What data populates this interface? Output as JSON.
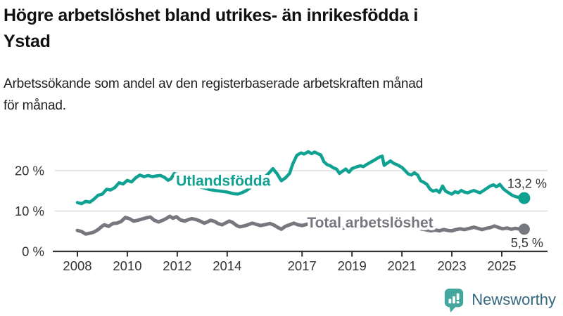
{
  "header": {
    "title_lines": [
      "Högre arbetslöshet bland utrikes- än inrikesfödda i",
      "Ystad"
    ],
    "subtitle_lines": [
      "Arbetssökande som andel av den registerbaserade arbetskraften månad",
      "för månad."
    ]
  },
  "chart_data": {
    "type": "line",
    "title": "Högre arbetslöshet bland utrikes- än inrikesfödda i Ystad",
    "subtitle": "Arbetssökande som andel av den registerbaserade arbetskraften månad för månad.",
    "xlabel": "",
    "ylabel": "",
    "grid": "horizontal",
    "legend_position": "inline-labels",
    "xlim": [
      2007.1,
      2026.8
    ],
    "ylim": [
      0,
      28
    ],
    "x_ticks": [
      {
        "year": 2008,
        "label": "2008"
      },
      {
        "year": 2010,
        "label": "2010"
      },
      {
        "year": 2012,
        "label": "2012"
      },
      {
        "year": 2014,
        "label": "2014"
      },
      {
        "year": 2017,
        "label": "2017"
      },
      {
        "year": 2019,
        "label": "2019"
      },
      {
        "year": 2021,
        "label": "2021"
      },
      {
        "year": 2023,
        "label": "2023"
      },
      {
        "year": 2025,
        "label": "2025"
      }
    ],
    "y_ticks": [
      {
        "value": 0,
        "label": "0 %"
      },
      {
        "value": 10,
        "label": "10 %"
      },
      {
        "value": 20,
        "label": "20 %"
      }
    ],
    "series": [
      {
        "id": "utlandsfodda",
        "name": "Utlandsfödda",
        "color": "#0FA191",
        "stroke_width": 4.5,
        "end_label": "13,2 %",
        "end_value": 13.2,
        "label_pos": {
          "year": 2011.95,
          "value": 16.3
        },
        "points": [
          [
            2008.0,
            12.1
          ],
          [
            2008.17,
            11.8
          ],
          [
            2008.33,
            12.4
          ],
          [
            2008.5,
            12.2
          ],
          [
            2008.67,
            13.0
          ],
          [
            2008.83,
            13.9
          ],
          [
            2009.0,
            14.2
          ],
          [
            2009.17,
            15.4
          ],
          [
            2009.33,
            15.2
          ],
          [
            2009.5,
            15.8
          ],
          [
            2009.67,
            17.0
          ],
          [
            2009.83,
            16.7
          ],
          [
            2010.0,
            17.6
          ],
          [
            2010.17,
            17.2
          ],
          [
            2010.33,
            18.2
          ],
          [
            2010.5,
            18.9
          ],
          [
            2010.67,
            18.5
          ],
          [
            2010.83,
            18.8
          ],
          [
            2011.0,
            18.5
          ],
          [
            2011.17,
            18.7
          ],
          [
            2011.33,
            18.8
          ],
          [
            2011.5,
            18.3
          ],
          [
            2011.63,
            17.6
          ],
          [
            2011.75,
            18.0
          ],
          [
            2011.88,
            19.3
          ],
          [
            2012.0,
            19.1
          ],
          [
            2012.25,
            18.3
          ],
          [
            2012.5,
            17.3
          ],
          [
            2012.75,
            16.4
          ],
          [
            2013.0,
            15.8
          ],
          [
            2013.25,
            15.4
          ],
          [
            2013.5,
            15.1
          ],
          [
            2013.75,
            14.9
          ],
          [
            2014.0,
            14.7
          ],
          [
            2014.25,
            14.3
          ],
          [
            2014.42,
            14.2
          ],
          [
            2014.58,
            14.5
          ],
          [
            2014.75,
            15.0
          ],
          [
            2015.0,
            16.1
          ],
          [
            2015.25,
            17.2
          ],
          [
            2015.5,
            18.4
          ],
          [
            2015.67,
            19.4
          ],
          [
            2015.83,
            20.5
          ],
          [
            2016.0,
            19.2
          ],
          [
            2016.17,
            17.5
          ],
          [
            2016.33,
            18.2
          ],
          [
            2016.5,
            19.3
          ],
          [
            2016.63,
            21.7
          ],
          [
            2016.79,
            23.8
          ],
          [
            2016.96,
            24.4
          ],
          [
            2017.08,
            24.1
          ],
          [
            2017.25,
            24.7
          ],
          [
            2017.38,
            24.2
          ],
          [
            2017.5,
            24.6
          ],
          [
            2017.63,
            24.2
          ],
          [
            2017.75,
            23.9
          ],
          [
            2017.88,
            22.2
          ],
          [
            2018.0,
            21.5
          ],
          [
            2018.13,
            21.2
          ],
          [
            2018.25,
            20.7
          ],
          [
            2018.38,
            20.4
          ],
          [
            2018.5,
            19.3
          ],
          [
            2018.63,
            19.9
          ],
          [
            2018.75,
            20.4
          ],
          [
            2018.88,
            19.6
          ],
          [
            2019.0,
            20.5
          ],
          [
            2019.17,
            20.9
          ],
          [
            2019.33,
            21.2
          ],
          [
            2019.46,
            21.0
          ],
          [
            2019.58,
            21.5
          ],
          [
            2019.75,
            22.1
          ],
          [
            2019.92,
            22.7
          ],
          [
            2020.08,
            23.3
          ],
          [
            2020.21,
            23.6
          ],
          [
            2020.29,
            21.3
          ],
          [
            2020.42,
            21.9
          ],
          [
            2020.54,
            22.4
          ],
          [
            2020.67,
            21.8
          ],
          [
            2020.83,
            21.4
          ],
          [
            2021.0,
            20.8
          ],
          [
            2021.13,
            20.0
          ],
          [
            2021.25,
            19.2
          ],
          [
            2021.38,
            18.9
          ],
          [
            2021.5,
            19.5
          ],
          [
            2021.63,
            18.9
          ],
          [
            2021.75,
            17.5
          ],
          [
            2021.88,
            17.1
          ],
          [
            2022.0,
            16.6
          ],
          [
            2022.13,
            15.4
          ],
          [
            2022.25,
            14.9
          ],
          [
            2022.38,
            15.2
          ],
          [
            2022.5,
            14.6
          ],
          [
            2022.63,
            16.2
          ],
          [
            2022.75,
            14.9
          ],
          [
            2022.88,
            14.5
          ],
          [
            2023.0,
            14.2
          ],
          [
            2023.13,
            14.8
          ],
          [
            2023.25,
            14.5
          ],
          [
            2023.38,
            15.1
          ],
          [
            2023.5,
            14.7
          ],
          [
            2023.63,
            14.5
          ],
          [
            2023.75,
            14.8
          ],
          [
            2023.88,
            15.1
          ],
          [
            2024.0,
            14.8
          ],
          [
            2024.13,
            14.5
          ],
          [
            2024.25,
            15.0
          ],
          [
            2024.42,
            15.7
          ],
          [
            2024.54,
            16.2
          ],
          [
            2024.67,
            16.5
          ],
          [
            2024.79,
            16.0
          ],
          [
            2024.92,
            16.6
          ],
          [
            2025.08,
            15.4
          ],
          [
            2025.25,
            14.6
          ],
          [
            2025.42,
            13.9
          ],
          [
            2025.58,
            13.5
          ],
          [
            2025.75,
            13.3
          ],
          [
            2025.9,
            13.2
          ]
        ]
      },
      {
        "id": "total",
        "name": "Total arbetslöshet",
        "color": "#77777F",
        "stroke_width": 5,
        "end_label": "5,5 %",
        "end_value": 5.5,
        "label_pos": {
          "year": 2017.2,
          "value": 5.9
        },
        "points": [
          [
            2008.0,
            5.2
          ],
          [
            2008.17,
            4.9
          ],
          [
            2008.33,
            4.3
          ],
          [
            2008.5,
            4.5
          ],
          [
            2008.67,
            4.8
          ],
          [
            2008.83,
            5.4
          ],
          [
            2009.0,
            6.3
          ],
          [
            2009.08,
            6.6
          ],
          [
            2009.25,
            6.2
          ],
          [
            2009.42,
            6.9
          ],
          [
            2009.58,
            7.0
          ],
          [
            2009.75,
            7.4
          ],
          [
            2009.92,
            8.4
          ],
          [
            2010.08,
            8.1
          ],
          [
            2010.25,
            7.5
          ],
          [
            2010.42,
            7.7
          ],
          [
            2010.58,
            8.0
          ],
          [
            2010.75,
            8.3
          ],
          [
            2010.92,
            8.5
          ],
          [
            2011.08,
            7.7
          ],
          [
            2011.25,
            7.3
          ],
          [
            2011.42,
            7.7
          ],
          [
            2011.58,
            8.2
          ],
          [
            2011.7,
            8.7
          ],
          [
            2011.83,
            8.2
          ],
          [
            2011.96,
            8.6
          ],
          [
            2012.13,
            7.8
          ],
          [
            2012.29,
            7.5
          ],
          [
            2012.46,
            7.9
          ],
          [
            2012.58,
            8.1
          ],
          [
            2012.75,
            7.9
          ],
          [
            2012.92,
            7.5
          ],
          [
            2013.08,
            7.0
          ],
          [
            2013.21,
            7.3
          ],
          [
            2013.33,
            7.7
          ],
          [
            2013.5,
            7.4
          ],
          [
            2013.63,
            6.9
          ],
          [
            2013.79,
            6.6
          ],
          [
            2013.92,
            7.0
          ],
          [
            2014.08,
            7.5
          ],
          [
            2014.21,
            7.2
          ],
          [
            2014.38,
            6.4
          ],
          [
            2014.5,
            6.1
          ],
          [
            2014.67,
            6.3
          ],
          [
            2014.83,
            6.6
          ],
          [
            2015.0,
            7.0
          ],
          [
            2015.17,
            6.7
          ],
          [
            2015.33,
            6.4
          ],
          [
            2015.5,
            6.6
          ],
          [
            2015.71,
            6.9
          ],
          [
            2015.88,
            6.5
          ],
          [
            2016.04,
            5.9
          ],
          [
            2016.17,
            5.5
          ],
          [
            2016.33,
            6.2
          ],
          [
            2016.5,
            6.6
          ],
          [
            2016.67,
            7.0
          ],
          [
            2016.83,
            6.6
          ],
          [
            2017.0,
            6.4
          ],
          [
            2017.25,
            6.8
          ],
          [
            2017.5,
            6.6
          ],
          [
            2017.75,
            6.3
          ],
          [
            2018.0,
            6.1
          ],
          [
            2018.33,
            5.9
          ],
          [
            2018.67,
            5.8
          ],
          [
            2019.0,
            6.0
          ],
          [
            2019.33,
            6.2
          ],
          [
            2019.67,
            6.3
          ],
          [
            2020.0,
            6.6
          ],
          [
            2020.25,
            7.3
          ],
          [
            2020.5,
            7.1
          ],
          [
            2020.75,
            6.8
          ],
          [
            2021.0,
            6.5
          ],
          [
            2021.25,
            6.2
          ],
          [
            2021.5,
            5.9
          ],
          [
            2021.75,
            5.6
          ],
          [
            2022.0,
            5.3
          ],
          [
            2022.17,
            5.1
          ],
          [
            2022.33,
            5.3
          ],
          [
            2022.5,
            5.1
          ],
          [
            2022.67,
            5.4
          ],
          [
            2022.83,
            5.2
          ],
          [
            2023.0,
            5.1
          ],
          [
            2023.17,
            5.4
          ],
          [
            2023.33,
            5.6
          ],
          [
            2023.5,
            5.4
          ],
          [
            2023.71,
            5.7
          ],
          [
            2023.88,
            6.0
          ],
          [
            2024.04,
            5.7
          ],
          [
            2024.21,
            5.4
          ],
          [
            2024.38,
            5.7
          ],
          [
            2024.54,
            5.9
          ],
          [
            2024.71,
            6.3
          ],
          [
            2024.88,
            5.9
          ],
          [
            2025.04,
            5.6
          ],
          [
            2025.21,
            5.8
          ],
          [
            2025.38,
            5.5
          ],
          [
            2025.54,
            5.7
          ],
          [
            2025.75,
            5.5
          ],
          [
            2025.9,
            5.5
          ]
        ]
      }
    ],
    "colors": {
      "axis": "#333333",
      "grid": "#DEDEDE",
      "tick_label": "#333333",
      "end_label": "#333333"
    }
  },
  "footer": {
    "brand": "Newsworthy",
    "logo_icon": "bar-chart-speech-bubble-icon",
    "logo_color": "#45A69E",
    "brand_text_color": "#35677E"
  }
}
